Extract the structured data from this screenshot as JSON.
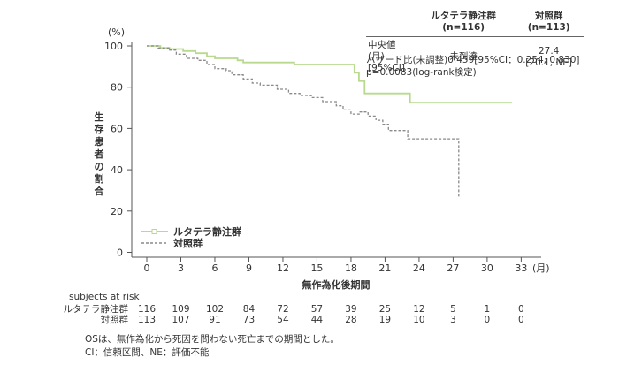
{
  "chart_data": {
    "type": "line",
    "y_unit": "(%)",
    "ylabel": "生存患者の割合",
    "xlabel": "無作為化後期間",
    "x_unit": "(月)",
    "x_ticks": [
      0,
      3,
      6,
      9,
      12,
      15,
      18,
      21,
      24,
      27,
      30,
      33
    ],
    "y_ticks": [
      0,
      20,
      40,
      60,
      80,
      100
    ],
    "xlim": [
      0,
      33
    ],
    "ylim": [
      0,
      100
    ],
    "grid": false,
    "legend_position": "bottom-left",
    "series": [
      {
        "name": "ルタテラ静注群",
        "color": "#b8d98f",
        "style": "solid",
        "points": [
          [
            0,
            100
          ],
          [
            1.2,
            100
          ],
          [
            1.2,
            99
          ],
          [
            2,
            99
          ],
          [
            2,
            98.5
          ],
          [
            3.2,
            98.5
          ],
          [
            3.2,
            97.5
          ],
          [
            4.3,
            97.5
          ],
          [
            4.3,
            96.5
          ],
          [
            5.3,
            96.5
          ],
          [
            5.3,
            95
          ],
          [
            6,
            95
          ],
          [
            6,
            94
          ],
          [
            8,
            94
          ],
          [
            8,
            93
          ],
          [
            8.5,
            93
          ],
          [
            8.5,
            92
          ],
          [
            13,
            92
          ],
          [
            13,
            91
          ],
          [
            18.3,
            91
          ],
          [
            18.3,
            87
          ],
          [
            18.7,
            87
          ],
          [
            18.7,
            83
          ],
          [
            19.2,
            83
          ],
          [
            19.2,
            77
          ],
          [
            23.2,
            77
          ],
          [
            23.2,
            72.5
          ],
          [
            32.2,
            72.5
          ]
        ]
      },
      {
        "name": "対照群",
        "color": "#8a8a8a",
        "style": "dashed",
        "points": [
          [
            0,
            100
          ],
          [
            1,
            100
          ],
          [
            1,
            99
          ],
          [
            2,
            99
          ],
          [
            2,
            98
          ],
          [
            2.6,
            98
          ],
          [
            2.6,
            96
          ],
          [
            3.5,
            96
          ],
          [
            3.5,
            94
          ],
          [
            4.5,
            94
          ],
          [
            4.5,
            93
          ],
          [
            5.3,
            93
          ],
          [
            5.3,
            91
          ],
          [
            6,
            91
          ],
          [
            6,
            89
          ],
          [
            7,
            89
          ],
          [
            7,
            88
          ],
          [
            7.5,
            88
          ],
          [
            7.5,
            86
          ],
          [
            8.5,
            86
          ],
          [
            8.5,
            84
          ],
          [
            9.3,
            84
          ],
          [
            9.3,
            82
          ],
          [
            10,
            82
          ],
          [
            10,
            81
          ],
          [
            11.5,
            81
          ],
          [
            11.5,
            79
          ],
          [
            12.5,
            79
          ],
          [
            12.5,
            77
          ],
          [
            13.5,
            77
          ],
          [
            13.5,
            76
          ],
          [
            14.5,
            76
          ],
          [
            14.5,
            75
          ],
          [
            15.5,
            75
          ],
          [
            15.5,
            73
          ],
          [
            16.7,
            73
          ],
          [
            16.7,
            71
          ],
          [
            17.3,
            71
          ],
          [
            17.3,
            69
          ],
          [
            18,
            69
          ],
          [
            18,
            67
          ],
          [
            18.8,
            67
          ],
          [
            18.8,
            68
          ],
          [
            19.5,
            68
          ],
          [
            19.5,
            66
          ],
          [
            20.2,
            66
          ],
          [
            20.2,
            64
          ],
          [
            20.8,
            64
          ],
          [
            20.8,
            62
          ],
          [
            21.3,
            62
          ],
          [
            21.3,
            59
          ],
          [
            23,
            59
          ],
          [
            23,
            55
          ],
          [
            27.5,
            55
          ],
          [
            27.5,
            27
          ]
        ]
      }
    ],
    "risk_table": {
      "title": "subjects at risk",
      "rows": [
        {
          "label": "ルタテラ静注群",
          "values": [
            "116",
            "109",
            "102",
            "84",
            "72",
            "57",
            "39",
            "25",
            "12",
            "5",
            "1",
            "0"
          ]
        },
        {
          "label": "対照群",
          "values": [
            "113",
            "107",
            "91",
            "73",
            "54",
            "44",
            "28",
            "19",
            "10",
            "3",
            "0",
            "0"
          ]
        }
      ]
    }
  },
  "stats_table": {
    "header": [
      "",
      "ルタテラ静注群(n=116)",
      "対照群(n=113)"
    ],
    "row_label_line1": "中央値(月)",
    "row_label_line2": "[95%CI]",
    "lutathera_value": "未到達",
    "control_value_line1": "27.4",
    "control_value_line2": "[20.1, NE]"
  },
  "stats_notes": [
    "ハザード比(未調整)0.459[95%CI：0.254, 0.830]",
    "p=0.0083(log-rank検定)"
  ],
  "footnotes": [
    "OSは、無作為化から死因を問わない死亡までの期間とした。",
    "CI：信頼区間、NE：評価不能"
  ]
}
